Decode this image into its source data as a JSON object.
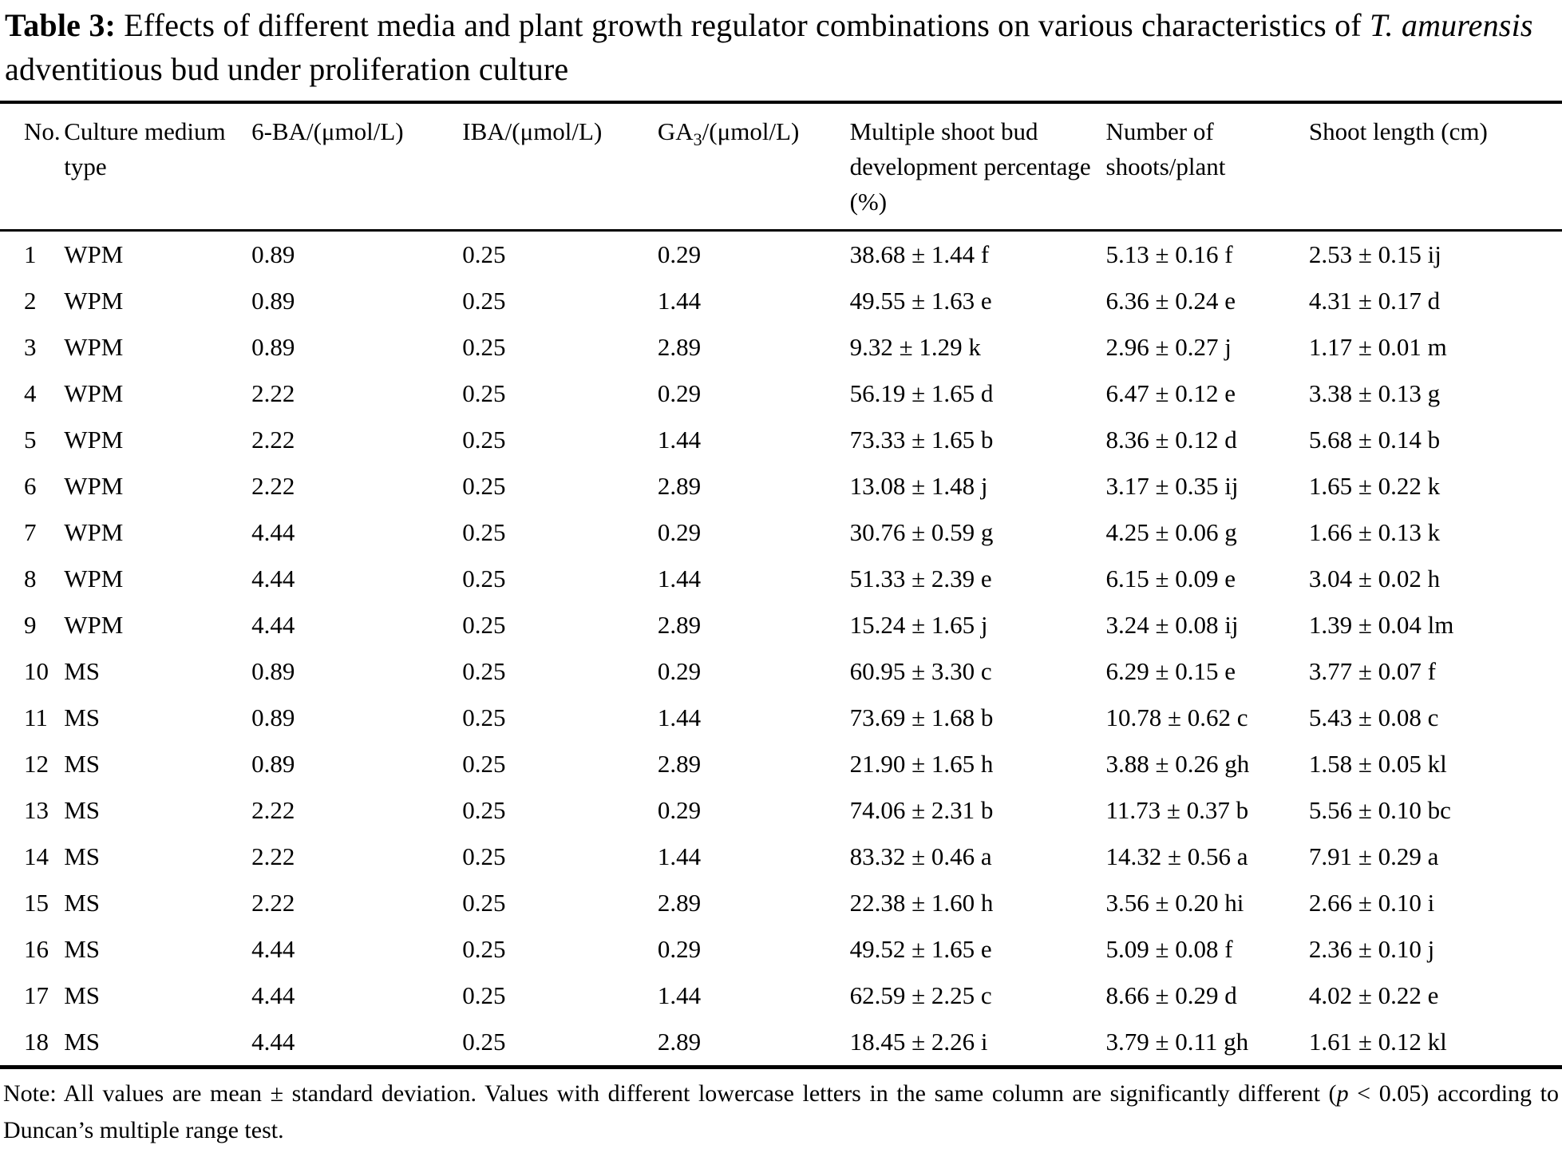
{
  "title": {
    "label": "Table 3:",
    "before_species": " Effects of different media and plant growth regulator combinations on various characteristics of ",
    "species": "T. amurensis",
    "after_species": " adventitious bud under proliferation culture"
  },
  "table": {
    "headers": [
      {
        "text": "No."
      },
      {
        "text": "Culture medium type"
      },
      {
        "text": "6-BA/(μmol/L)"
      },
      {
        "text": "IBA/(μmol/L)"
      },
      {
        "text": "GA",
        "sub": "3",
        "rest": "/(μmol/L)"
      },
      {
        "text": "Multiple shoot bud development percentage (%)"
      },
      {
        "text": "Number of shoots/plant"
      },
      {
        "text": "Shoot length (cm)"
      }
    ],
    "rows": [
      [
        "1",
        "WPM",
        "0.89",
        "0.25",
        "0.29",
        "38.68 ± 1.44 f",
        "5.13 ± 0.16 f",
        "2.53 ± 0.15 ij"
      ],
      [
        "2",
        "WPM",
        "0.89",
        "0.25",
        "1.44",
        "49.55 ± 1.63 e",
        "6.36 ± 0.24 e",
        "4.31 ± 0.17 d"
      ],
      [
        "3",
        "WPM",
        "0.89",
        "0.25",
        "2.89",
        "9.32 ± 1.29 k",
        "2.96 ± 0.27 j",
        "1.17 ± 0.01 m"
      ],
      [
        "4",
        "WPM",
        "2.22",
        "0.25",
        "0.29",
        "56.19 ± 1.65 d",
        "6.47 ± 0.12 e",
        "3.38 ± 0.13 g"
      ],
      [
        "5",
        "WPM",
        "2.22",
        "0.25",
        "1.44",
        "73.33 ± 1.65 b",
        "8.36 ± 0.12 d",
        "5.68 ± 0.14 b"
      ],
      [
        "6",
        "WPM",
        "2.22",
        "0.25",
        "2.89",
        "13.08 ± 1.48 j",
        "3.17 ± 0.35 ij",
        "1.65 ± 0.22 k"
      ],
      [
        "7",
        "WPM",
        "4.44",
        "0.25",
        "0.29",
        "30.76 ± 0.59 g",
        "4.25 ± 0.06 g",
        "1.66 ± 0.13 k"
      ],
      [
        "8",
        "WPM",
        "4.44",
        "0.25",
        "1.44",
        "51.33 ± 2.39 e",
        "6.15 ± 0.09 e",
        "3.04 ± 0.02 h"
      ],
      [
        "9",
        "WPM",
        "4.44",
        "0.25",
        "2.89",
        "15.24 ± 1.65 j",
        "3.24 ± 0.08 ij",
        "1.39 ± 0.04 lm"
      ],
      [
        "10",
        "MS",
        "0.89",
        "0.25",
        "0.29",
        "60.95 ± 3.30 c",
        "6.29 ± 0.15 e",
        "3.77 ± 0.07 f"
      ],
      [
        "11",
        "MS",
        "0.89",
        "0.25",
        "1.44",
        "73.69 ± 1.68 b",
        "10.78 ± 0.62 c",
        "5.43 ± 0.08 c"
      ],
      [
        "12",
        "MS",
        "0.89",
        "0.25",
        "2.89",
        "21.90 ± 1.65 h",
        "3.88 ± 0.26 gh",
        "1.58 ± 0.05 kl"
      ],
      [
        "13",
        "MS",
        "2.22",
        "0.25",
        "0.29",
        "74.06 ± 2.31 b",
        "11.73 ± 0.37 b",
        "5.56 ± 0.10 bc"
      ],
      [
        "14",
        "MS",
        "2.22",
        "0.25",
        "1.44",
        "83.32 ± 0.46 a",
        "14.32 ± 0.56 a",
        "7.91 ± 0.29 a"
      ],
      [
        "15",
        "MS",
        "2.22",
        "0.25",
        "2.89",
        "22.38 ± 1.60 h",
        "3.56 ± 0.20 hi",
        "2.66 ± 0.10 i"
      ],
      [
        "16",
        "MS",
        "4.44",
        "0.25",
        "0.29",
        "49.52 ± 1.65 e",
        "5.09 ± 0.08 f",
        "2.36 ± 0.10 j"
      ],
      [
        "17",
        "MS",
        "4.44",
        "0.25",
        "1.44",
        "62.59 ± 2.25 c",
        "8.66 ± 0.29 d",
        "4.02 ± 0.22 e"
      ],
      [
        "18",
        "MS",
        "4.44",
        "0.25",
        "2.89",
        "18.45 ± 2.26 i",
        "3.79 ± 0.11 gh",
        "1.61 ± 0.12 kl"
      ]
    ]
  },
  "note": {
    "before_p": "Note: All values are mean ± standard deviation. Values with different lowercase letters in the same column are significantly different (",
    "p": "p",
    "after_p": " < 0.05) according to Duncan’s multiple range test."
  }
}
